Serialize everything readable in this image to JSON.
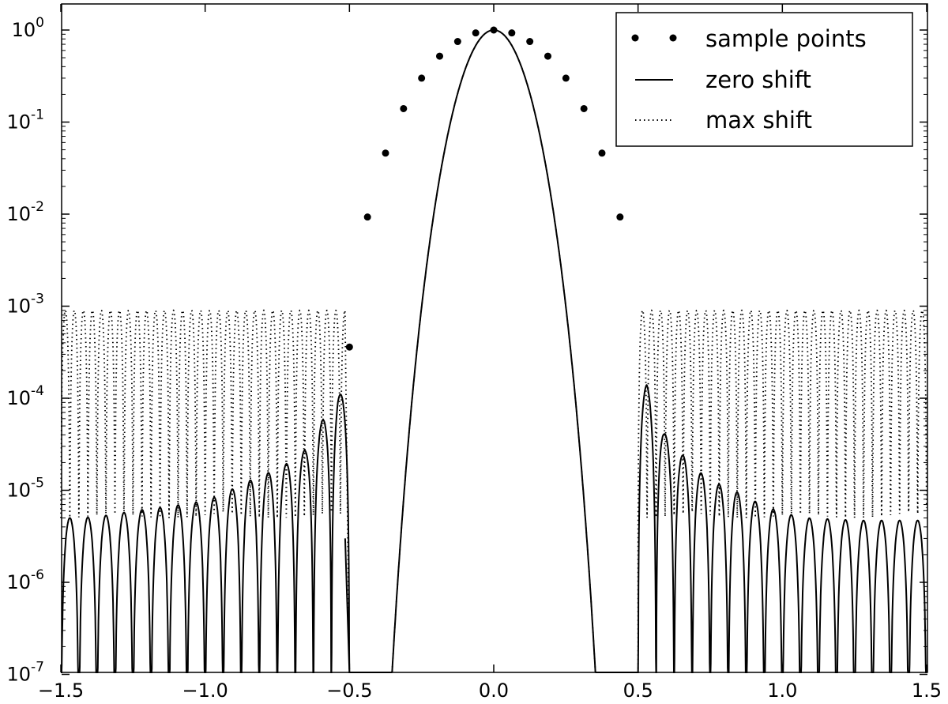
{
  "chart_data": {
    "type": "line",
    "yscale": "log",
    "xlim": [
      -1.5,
      1.5
    ],
    "ylim": [
      1e-07,
      2
    ],
    "grid": false,
    "legend_position": "top-right",
    "x_ticks": [
      -1.5,
      -1.0,
      -0.5,
      0.0,
      0.5,
      1.0,
      1.5
    ],
    "x_tick_labels": [
      "−1.5",
      "−1.0",
      "−0.5",
      "0.0",
      "0.5",
      "1.0",
      "1.5"
    ],
    "y_ticks": [
      {
        "value": 1.0,
        "base": "10",
        "exp": "0"
      },
      {
        "value": 0.1,
        "base": "10",
        "exp": "-1"
      },
      {
        "value": 0.01,
        "base": "10",
        "exp": "-2"
      },
      {
        "value": 0.001,
        "base": "10",
        "exp": "-3"
      },
      {
        "value": 0.0001,
        "base": "10",
        "exp": "-4"
      },
      {
        "value": 1e-05,
        "base": "10",
        "exp": "-5"
      },
      {
        "value": 1e-06,
        "base": "10",
        "exp": "-6"
      },
      {
        "value": 1e-07,
        "base": "10",
        "exp": "-7"
      }
    ],
    "series": [
      {
        "name": "sample points",
        "style": "markers",
        "x": [
          -0.5,
          -0.4375,
          -0.375,
          -0.3125,
          -0.25,
          -0.1875,
          -0.125,
          -0.0625,
          0.0,
          0.0625,
          0.125,
          0.1875,
          0.25,
          0.3125,
          0.375,
          0.4375
        ],
        "y": [
          0.00036,
          0.0093,
          0.046,
          0.14,
          0.3,
          0.52,
          0.75,
          0.93,
          1.0,
          0.93,
          0.75,
          0.52,
          0.3,
          0.14,
          0.046,
          0.0093
        ]
      },
      {
        "name": "zero shift",
        "style": "solid",
        "main_lobe": {
          "center": 0.0,
          "half_width": 0.5,
          "peak": 1.0
        },
        "sidelobe_period": 0.0625,
        "sidelobe_floor": 1e-07,
        "sidelobe_peaks_left": [
          {
            "x": -1.5,
            "y": 5e-06
          },
          {
            "x": -1.45,
            "y": 5e-06
          },
          {
            "x": -1.39,
            "y": 5.1e-06
          },
          {
            "x": -1.33,
            "y": 5.4e-06
          },
          {
            "x": -1.27,
            "y": 5.8e-06
          },
          {
            "x": -1.21,
            "y": 6.2e-06
          },
          {
            "x": -1.15,
            "y": 6.5e-06
          },
          {
            "x": -1.08,
            "y": 7e-06
          },
          {
            "x": -1.02,
            "y": 7.5e-06
          },
          {
            "x": -0.96,
            "y": 8.5e-06
          },
          {
            "x": -0.9,
            "y": 1.05e-05
          },
          {
            "x": -0.84,
            "y": 1.3e-05
          },
          {
            "x": -0.77,
            "y": 1.6e-05
          },
          {
            "x": -0.71,
            "y": 2e-05
          },
          {
            "x": -0.65,
            "y": 2.8e-05
          },
          {
            "x": -0.59,
            "y": 6e-05
          },
          {
            "x": -0.54,
            "y": 0.00011
          }
        ],
        "sidelobe_peaks_right": [
          {
            "x": 0.53,
            "y": 0.00014
          },
          {
            "x": 0.59,
            "y": 4.2e-05
          },
          {
            "x": 0.65,
            "y": 2.5e-05
          },
          {
            "x": 0.71,
            "y": 1.6e-05
          },
          {
            "x": 0.77,
            "y": 1.2e-05
          },
          {
            "x": 0.83,
            "y": 1e-05
          },
          {
            "x": 0.89,
            "y": 8e-06
          },
          {
            "x": 0.95,
            "y": 6.5e-06
          },
          {
            "x": 1.02,
            "y": 5.5e-06
          },
          {
            "x": 1.08,
            "y": 5e-06
          },
          {
            "x": 1.14,
            "y": 4.9e-06
          },
          {
            "x": 1.2,
            "y": 4.8e-06
          },
          {
            "x": 1.26,
            "y": 4.7e-06
          },
          {
            "x": 1.33,
            "y": 4.7e-06
          },
          {
            "x": 1.39,
            "y": 4.7e-06
          },
          {
            "x": 1.45,
            "y": 4.7e-06
          }
        ],
        "left_edge_min": {
          "x": -0.515,
          "y": 3e-06
        }
      },
      {
        "name": "max shift",
        "style": "dotted",
        "main_lobe": {
          "center": 0.0,
          "half_width": 0.5,
          "peak": 1.0
        },
        "sidelobe_period": 0.03125,
        "sidelobe_peak": 0.0009,
        "sidelobe_min": 5e-06,
        "left_region": [
          -1.5,
          -0.515
        ],
        "right_region": [
          0.5,
          1.5
        ]
      }
    ]
  }
}
